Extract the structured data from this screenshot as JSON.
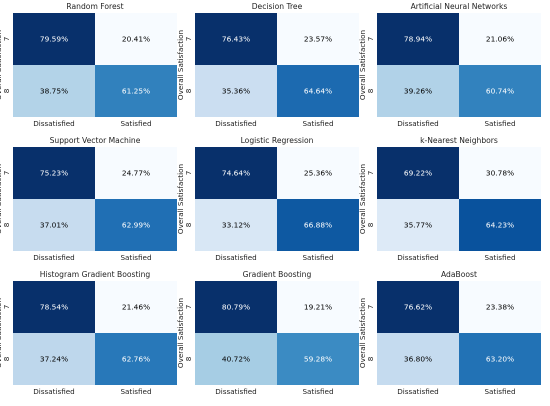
{
  "chart_data": [
    {
      "type": "heatmap",
      "title": "Random Forest",
      "ylabel": "Overall Satisfaction",
      "y_categories": [
        "7",
        "8"
      ],
      "x_categories": [
        "Dissatisfied",
        "Satisfied"
      ],
      "values": [
        [
          79.59,
          20.41
        ],
        [
          38.75,
          61.25
        ]
      ],
      "labels": [
        [
          "79.59%",
          "20.41%"
        ],
        [
          "38.75%",
          "61.25%"
        ]
      ]
    },
    {
      "type": "heatmap",
      "title": "Decision Tree",
      "ylabel": "Overall Satisfaction",
      "y_categories": [
        "7",
        "8"
      ],
      "x_categories": [
        "Dissatisfied",
        "Satisfied"
      ],
      "values": [
        [
          76.43,
          23.57
        ],
        [
          35.36,
          64.64
        ]
      ],
      "labels": [
        [
          "76.43%",
          "23.57%"
        ],
        [
          "35.36%",
          "64.64%"
        ]
      ]
    },
    {
      "type": "heatmap",
      "title": "Artificial Neural Networks",
      "ylabel": "Overall Satisfaction",
      "y_categories": [
        "7",
        "8"
      ],
      "x_categories": [
        "Dissatisfied",
        "Satisfied"
      ],
      "values": [
        [
          78.94,
          21.06
        ],
        [
          39.26,
          60.74
        ]
      ],
      "labels": [
        [
          "78.94%",
          "21.06%"
        ],
        [
          "39.26%",
          "60.74%"
        ]
      ]
    },
    {
      "type": "heatmap",
      "title": "Support Vector Machine",
      "ylabel": "Overall Satisfaction",
      "y_categories": [
        "7",
        "8"
      ],
      "x_categories": [
        "Dissatisfied",
        "Satisfied"
      ],
      "values": [
        [
          75.23,
          24.77
        ],
        [
          37.01,
          62.99
        ]
      ],
      "labels": [
        [
          "75.23%",
          "24.77%"
        ],
        [
          "37.01%",
          "62.99%"
        ]
      ]
    },
    {
      "type": "heatmap",
      "title": "Logistic Regression",
      "ylabel": "Overall Satisfaction",
      "y_categories": [
        "7",
        "8"
      ],
      "x_categories": [
        "Dissatisfied",
        "Satisfied"
      ],
      "values": [
        [
          74.64,
          25.36
        ],
        [
          33.12,
          66.88
        ]
      ],
      "labels": [
        [
          "74.64%",
          "25.36%"
        ],
        [
          "33.12%",
          "66.88%"
        ]
      ]
    },
    {
      "type": "heatmap",
      "title": "k-Nearest Neighbors",
      "ylabel": "Overall Satisfaction",
      "y_categories": [
        "7",
        "8"
      ],
      "x_categories": [
        "Dissatisfied",
        "Satisfied"
      ],
      "values": [
        [
          69.22,
          30.78
        ],
        [
          35.77,
          64.23
        ]
      ],
      "labels": [
        [
          "69.22%",
          "30.78%"
        ],
        [
          "35.77%",
          "64.23%"
        ]
      ]
    },
    {
      "type": "heatmap",
      "title": "Histogram Gradient Boosting",
      "ylabel": "Overall Satisfaction",
      "y_categories": [
        "7",
        "8"
      ],
      "x_categories": [
        "Dissatisfied",
        "Satisfied"
      ],
      "values": [
        [
          78.54,
          21.46
        ],
        [
          37.24,
          62.76
        ]
      ],
      "labels": [
        [
          "78.54%",
          "21.46%"
        ],
        [
          "37.24%",
          "62.76%"
        ]
      ]
    },
    {
      "type": "heatmap",
      "title": "Gradient Boosting",
      "ylabel": "Overall Satisfaction",
      "y_categories": [
        "7",
        "8"
      ],
      "x_categories": [
        "Dissatisfied",
        "Satisfied"
      ],
      "values": [
        [
          80.79,
          19.21
        ],
        [
          40.72,
          59.28
        ]
      ],
      "labels": [
        [
          "80.79%",
          "19.21%"
        ],
        [
          "40.72%",
          "59.28%"
        ]
      ]
    },
    {
      "type": "heatmap",
      "title": "AdaBoost",
      "ylabel": "Overall Satisfaction",
      "y_categories": [
        "7",
        "8"
      ],
      "x_categories": [
        "Dissatisfied",
        "Satisfied"
      ],
      "values": [
        [
          76.62,
          23.38
        ],
        [
          36.8,
          63.2
        ]
      ],
      "labels": [
        [
          "76.62%",
          "23.38%"
        ],
        [
          "36.80%",
          "63.20%"
        ]
      ]
    }
  ],
  "colormap": "Blues",
  "colormap_stops": [
    "#f7fbff",
    "#deebf7",
    "#c6dbef",
    "#9ecae1",
    "#6baed6",
    "#4292c6",
    "#2171b5",
    "#08519c",
    "#08306b"
  ],
  "text_colors": {
    "dark_cell": "#ffffff",
    "light_cell": "#000000"
  }
}
